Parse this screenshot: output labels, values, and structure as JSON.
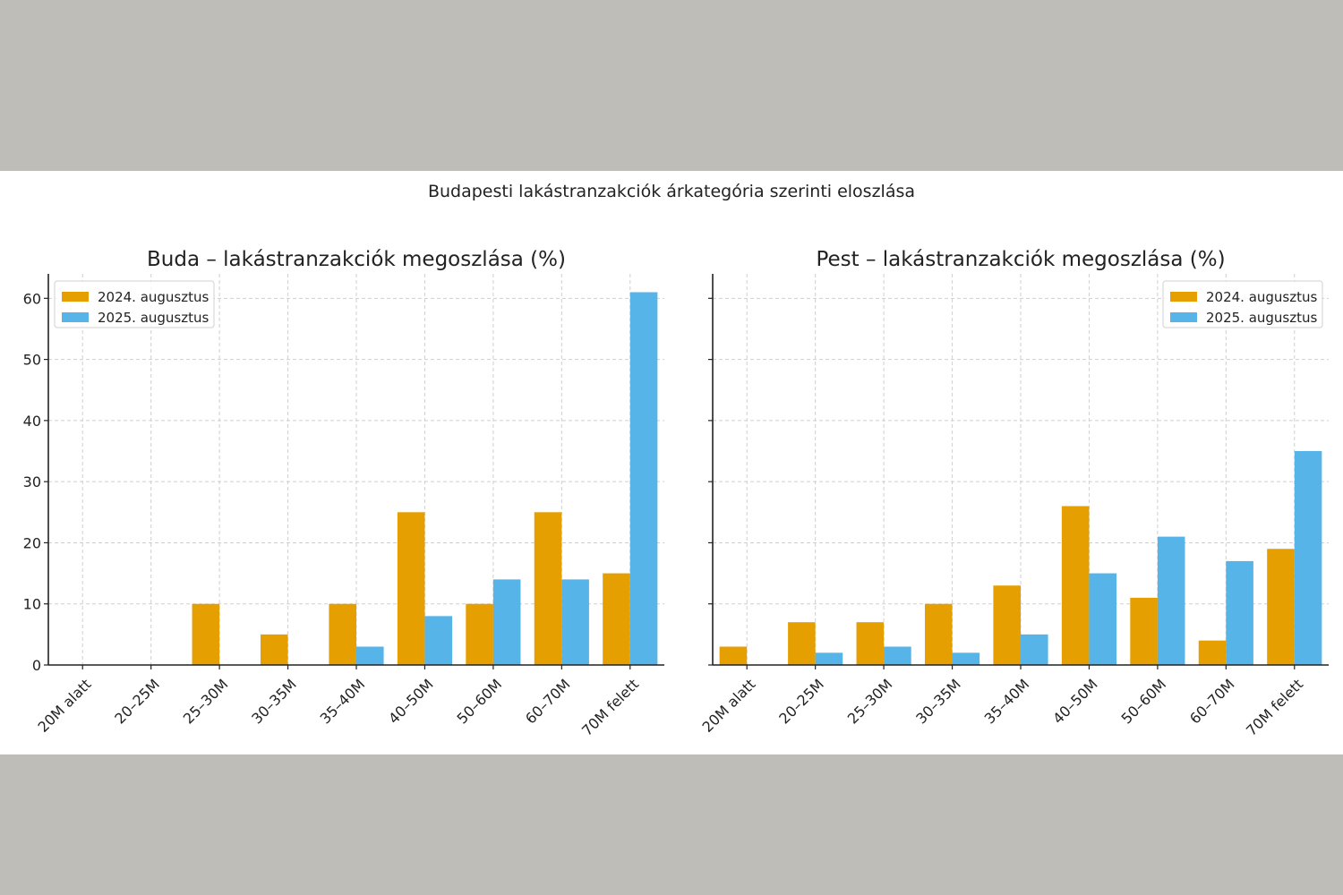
{
  "suptitle": "Budapesti lakástranzakciók árkategória szerinti eloszlása",
  "colors": {
    "y2024": "#e69f00",
    "y2025": "#56b4e9"
  },
  "chart_data": [
    {
      "type": "bar",
      "title": "Buda – lakástranzakciók megoszlása (%)",
      "categories": [
        "20M alatt",
        "20–25M",
        "25–30M",
        "30–35M",
        "35–40M",
        "40–50M",
        "50–60M",
        "60–70M",
        "70M felett"
      ],
      "series": [
        {
          "name": "2024. augusztus",
          "values": [
            0,
            0,
            10,
            5,
            10,
            25,
            10,
            25,
            15
          ]
        },
        {
          "name": "2025. augusztus",
          "values": [
            0,
            0,
            0,
            0,
            3,
            8,
            14,
            14,
            61
          ]
        }
      ],
      "yticks": [
        0,
        10,
        20,
        30,
        40,
        50,
        60
      ],
      "ylim": [
        0,
        64
      ],
      "grid": true,
      "legend": "top-left"
    },
    {
      "type": "bar",
      "title": "Pest – lakástranzakciók megoszlása (%)",
      "categories": [
        "20M alatt",
        "20–25M",
        "25–30M",
        "30–35M",
        "35–40M",
        "40–50M",
        "50–60M",
        "60–70M",
        "70M felett"
      ],
      "series": [
        {
          "name": "2024. augusztus",
          "values": [
            3,
            7,
            7,
            10,
            13,
            26,
            11,
            4,
            19
          ]
        },
        {
          "name": "2025. augusztus",
          "values": [
            0,
            2,
            3,
            2,
            5,
            15,
            21,
            17,
            35
          ]
        }
      ],
      "yticks": [],
      "ylim": [
        0,
        64
      ],
      "grid": true,
      "legend": "top-right"
    }
  ]
}
